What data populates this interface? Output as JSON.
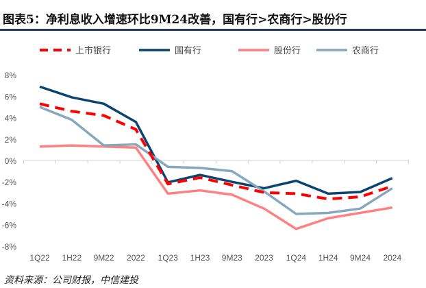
{
  "title": "图表5：净利息收入增速环比9M24改善，国有行>农商行>股份行",
  "source": "资料来源：公司财报，中信建投",
  "chart_data": {
    "type": "line",
    "categories": [
      "1Q22",
      "1H22",
      "9M22",
      "2022",
      "1Q23",
      "1H23",
      "9M23",
      "2023",
      "1Q24",
      "1H24",
      "9M24",
      "2024"
    ],
    "ylim": [
      -8,
      8
    ],
    "yticks": [
      -8,
      -6,
      -4,
      -2,
      0,
      2,
      4,
      6,
      8
    ],
    "ytick_labels": [
      "-8%",
      "-6%",
      "-4%",
      "-2%",
      "0%",
      "2%",
      "4%",
      "6%",
      "8%"
    ],
    "grid": false,
    "legend": "top",
    "series": [
      {
        "name": "上市银行",
        "color": "#ff0000",
        "dash": true,
        "values": [
          5.3,
          4.6,
          4.2,
          2.9,
          -2.2,
          -1.6,
          -2.3,
          -3.0,
          -3.1,
          -3.6,
          -3.4,
          -2.4
        ]
      },
      {
        "name": "国有行",
        "color": "#0b4470",
        "dash": false,
        "values": [
          6.9,
          5.9,
          5.3,
          3.6,
          -2.05,
          -1.35,
          -2.0,
          -2.6,
          -1.9,
          -3.1,
          -2.95,
          -1.65
        ]
      },
      {
        "name": "股份行",
        "color": "#ff8080",
        "dash": false,
        "values": [
          1.3,
          1.4,
          1.3,
          1.2,
          -3.1,
          -2.8,
          -3.2,
          -4.5,
          -6.4,
          -5.4,
          -4.9,
          -4.4
        ]
      },
      {
        "name": "农商行",
        "color": "#87a7be",
        "dash": false,
        "values": [
          5.0,
          3.8,
          1.4,
          1.5,
          -0.6,
          -0.7,
          -1.0,
          -2.9,
          -5.0,
          -4.9,
          -4.5,
          -2.6
        ]
      }
    ]
  }
}
